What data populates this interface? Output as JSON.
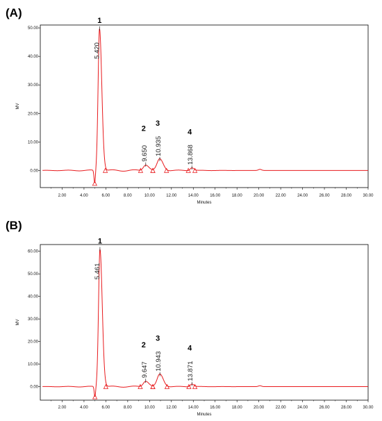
{
  "colors": {
    "trace": "#e8191c",
    "axis": "#000000",
    "marker": "#e8191c"
  },
  "chart_data": [
    {
      "type": "line",
      "panel_label": "(A)",
      "xlabel": "Minutes",
      "ylabel": "MV",
      "xlim": [
        0,
        30
      ],
      "ylim": [
        -6,
        51
      ],
      "xticks": [
        2,
        4,
        6,
        8,
        10,
        12,
        14,
        16,
        18,
        20,
        22,
        24,
        26,
        28,
        30
      ],
      "xtick_labels": [
        "2.00",
        "4.00",
        "6.00",
        "8.00",
        "10.00",
        "12.00",
        "14.00",
        "16.00",
        "18.00",
        "20.00",
        "22.00",
        "24.00",
        "26.00",
        "28.00",
        "30.00"
      ],
      "yticks": [
        0,
        10,
        20,
        30,
        40,
        50
      ],
      "ytick_labels": [
        "0.00",
        "10.00",
        "20.00",
        "30.00",
        "40.00",
        "50.00"
      ],
      "baseline": 0,
      "dip": {
        "time": 4.98,
        "value": -4.5
      },
      "peaks": [
        {
          "number": "1",
          "rt": 5.42,
          "rt_label": "5.420",
          "height": 49.8,
          "width": 0.13,
          "start": 5.0,
          "end": 5.95
        },
        {
          "number": "2",
          "rt": 9.65,
          "rt_label": "9.650",
          "height": 2.1,
          "width": 0.22,
          "start": 9.18,
          "end": 10.3
        },
        {
          "number": "3",
          "rt": 10.935,
          "rt_label": "10.935",
          "height": 4.0,
          "width": 0.24,
          "start": 10.3,
          "end": 11.55
        },
        {
          "number": "4",
          "rt": 13.868,
          "rt_label": "13.868",
          "height": 1.0,
          "width": 0.15,
          "start": 13.55,
          "end": 14.15
        }
      ]
    },
    {
      "type": "line",
      "panel_label": "(B)",
      "xlabel": "Minutes",
      "ylabel": "MV",
      "xlim": [
        0,
        30
      ],
      "ylim": [
        -6,
        63
      ],
      "xticks": [
        2,
        4,
        6,
        8,
        10,
        12,
        14,
        16,
        18,
        20,
        22,
        24,
        26,
        28,
        30
      ],
      "xtick_labels": [
        "2.00",
        "4.00",
        "6.00",
        "8.00",
        "10.00",
        "12.00",
        "14.00",
        "16.00",
        "18.00",
        "20.00",
        "22.00",
        "24.00",
        "26.00",
        "28.00",
        "30.00"
      ],
      "yticks": [
        0,
        10,
        20,
        30,
        40,
        50,
        60
      ],
      "ytick_labels": [
        "0.00",
        "10.00",
        "20.00",
        "30.00",
        "40.00",
        "50.00",
        "60.00"
      ],
      "baseline": 0,
      "dip": {
        "time": 5.0,
        "value": -4.5
      },
      "peaks": [
        {
          "number": "1",
          "rt": 5.461,
          "rt_label": "5.461",
          "height": 61.0,
          "width": 0.13,
          "start": 5.0,
          "end": 6.0
        },
        {
          "number": "2",
          "rt": 9.647,
          "rt_label": "9.647",
          "height": 2.6,
          "width": 0.22,
          "start": 9.15,
          "end": 10.3
        },
        {
          "number": "3",
          "rt": 10.943,
          "rt_label": "10.943",
          "height": 5.5,
          "width": 0.24,
          "start": 10.3,
          "end": 11.6
        },
        {
          "number": "4",
          "rt": 13.871,
          "rt_label": "13.871",
          "height": 1.2,
          "width": 0.15,
          "start": 13.6,
          "end": 14.15
        }
      ]
    }
  ]
}
